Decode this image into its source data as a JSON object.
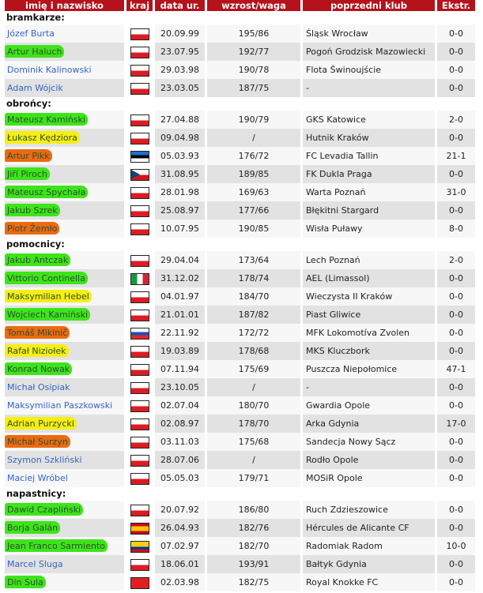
{
  "headers": [
    "imię i nazwisko",
    "kraj",
    "data ur.",
    "wzrost/waga",
    "poprzedni klub",
    "Ekstr."
  ],
  "highlight_colors": {
    "green": "#3ee41a",
    "yellow": "#f7ee12",
    "orange": "#ec6a10"
  },
  "sections": [
    {
      "title": "bramkarze:",
      "players": [
        {
          "name": "Józef Burta",
          "flag": "pl",
          "dob": "20.09.99",
          "hw": "195/86",
          "club": "Śląsk Wrocław",
          "ex": "0-0",
          "hl": ""
        },
        {
          "name": "Artur Haluch",
          "flag": "pl",
          "dob": "23.07.95",
          "hw": "192/77",
          "club": "Pogoń Grodzisk Mazowiecki",
          "ex": "0-0",
          "hl": "green"
        },
        {
          "name": "Dominik Kalinowski",
          "flag": "pl",
          "dob": "29.03.98",
          "hw": "190/78",
          "club": "Flota Świnoujście",
          "ex": "0-0",
          "hl": ""
        },
        {
          "name": "Adam Wójcik",
          "flag": "pl",
          "dob": "23.03.05",
          "hw": "187/75",
          "club": "-",
          "ex": "0-0",
          "hl": ""
        }
      ]
    },
    {
      "title": "obrońcy:",
      "players": [
        {
          "name": "Mateusz Kamiński",
          "flag": "pl",
          "dob": "27.04.88",
          "hw": "190/79",
          "club": "GKS Katowice",
          "ex": "2-0",
          "hl": "green"
        },
        {
          "name": "Łukasz Kędziora",
          "flag": "pl",
          "dob": "09.04.98",
          "hw": "/",
          "club": "Hutnik Kraków",
          "ex": "0-0",
          "hl": "yellow"
        },
        {
          "name": "Artur Pikk",
          "flag": "ee",
          "dob": "05.03.93",
          "hw": "176/72",
          "club": "FC Levadia Tallin",
          "ex": "21-1",
          "hl": "orange"
        },
        {
          "name": "Jiří Piroch",
          "flag": "cz",
          "dob": "31.08.95",
          "hw": "189/85",
          "club": "FK Dukla Praga",
          "ex": "0-0",
          "hl": "green"
        },
        {
          "name": "Mateusz Spychała",
          "flag": "pl",
          "dob": "28.01.98",
          "hw": "169/63",
          "club": "Warta Poznań",
          "ex": "31-0",
          "hl": "green"
        },
        {
          "name": "Jakub Szrek",
          "flag": "pl",
          "dob": "25.08.97",
          "hw": "177/66",
          "club": "Błękitni Stargard",
          "ex": "0-0",
          "hl": "green"
        },
        {
          "name": "Piotr Żemło",
          "flag": "pl",
          "dob": "10.07.95",
          "hw": "190/85",
          "club": "Wisła Puławy",
          "ex": "8-0",
          "hl": "orange"
        }
      ]
    },
    {
      "title": "pomocnicy:",
      "players": [
        {
          "name": "Jakub Antczak",
          "flag": "pl",
          "dob": "29.04.04",
          "hw": "173/64",
          "club": "Lech Poznań",
          "ex": "2-0",
          "hl": "green"
        },
        {
          "name": "Vittorio Continella",
          "flag": "it",
          "dob": "31.12.02",
          "hw": "178/74",
          "club": "AEL (Limassol)",
          "ex": "0-0",
          "hl": "green"
        },
        {
          "name": "Maksymilian Hebel",
          "flag": "pl",
          "dob": "04.01.97",
          "hw": "184/70",
          "club": "Wieczysta II Kraków",
          "ex": "0-0",
          "hl": "yellow"
        },
        {
          "name": "Wojciech Kamiński",
          "flag": "pl",
          "dob": "21.01.01",
          "hw": "187/82",
          "club": "Piast Gliwice",
          "ex": "0-0",
          "hl": "green"
        },
        {
          "name": "Tomáš Mikinič",
          "flag": "sk",
          "dob": "22.11.92",
          "hw": "172/72",
          "club": "MFK Lokomotíva Zvolen",
          "ex": "0-0",
          "hl": "orange"
        },
        {
          "name": "Rafał Niziołek",
          "flag": "pl",
          "dob": "19.03.89",
          "hw": "178/68",
          "club": "MKS Kluczbork",
          "ex": "0-0",
          "hl": "yellow"
        },
        {
          "name": "Konrad Nowak",
          "flag": "pl",
          "dob": "07.11.94",
          "hw": "175/69",
          "club": "Puszcza Niepołomice",
          "ex": "47-1",
          "hl": "green"
        },
        {
          "name": "Michał Osipiak",
          "flag": "pl",
          "dob": "23.10.05",
          "hw": "/",
          "club": "-",
          "ex": "0-0",
          "hl": ""
        },
        {
          "name": "Maksymilian Paszkowski",
          "flag": "pl",
          "dob": "02.07.04",
          "hw": "180/70",
          "club": "Gwardia Opole",
          "ex": "0-0",
          "hl": ""
        },
        {
          "name": "Adrian Purzycki",
          "flag": "pl",
          "dob": "02.08.97",
          "hw": "178/70",
          "club": "Arka Gdynia",
          "ex": "17-0",
          "hl": "yellow"
        },
        {
          "name": "Michał Surzyn",
          "flag": "pl",
          "dob": "03.11.03",
          "hw": "175/68",
          "club": "Sandecja Nowy Sącz",
          "ex": "0-0",
          "hl": "orange"
        },
        {
          "name": "Szymon Szkliński",
          "flag": "pl",
          "dob": "28.07.06",
          "hw": "/",
          "club": "Rodło Opole",
          "ex": "0-0",
          "hl": ""
        },
        {
          "name": "Maciej Wróbel",
          "flag": "pl",
          "dob": "05.05.03",
          "hw": "179/71",
          "club": "MOSiR Opole",
          "ex": "0-0",
          "hl": ""
        }
      ]
    },
    {
      "title": "napastnicy:",
      "players": [
        {
          "name": "Dawid Czapliński",
          "flag": "pl",
          "dob": "20.07.92",
          "hw": "186/80",
          "club": "Ruch Zdzieszowice",
          "ex": "0-0",
          "hl": "green"
        },
        {
          "name": "Borja Galán",
          "flag": "es",
          "dob": "26.04.93",
          "hw": "182/76",
          "club": "Hércules de Alicante CF",
          "ex": "0-0",
          "hl": "green"
        },
        {
          "name": "Jean Franco Sarmiento",
          "flag": "co",
          "dob": "07.02.97",
          "hw": "182/70",
          "club": "Radomiak Radom",
          "ex": "10-0",
          "hl": "green"
        },
        {
          "name": "Marcel Sluga",
          "flag": "pl",
          "dob": "18.06.01",
          "hw": "193/91",
          "club": "Bałtyk Gdynia",
          "ex": "0-0",
          "hl": ""
        },
        {
          "name": "Din Sula",
          "flag": "al",
          "dob": "02.03.98",
          "hw": "182/75",
          "club": "Royal Knokke FC",
          "ex": "0-0",
          "hl": "green"
        }
      ]
    }
  ]
}
